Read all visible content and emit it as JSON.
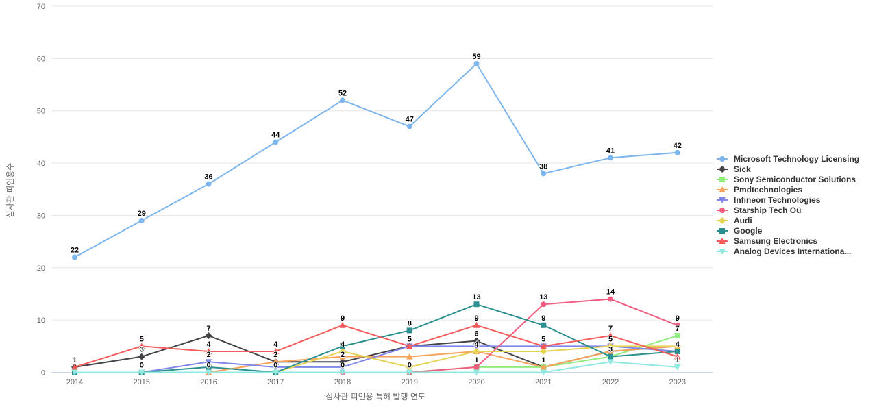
{
  "chart_data": {
    "type": "line",
    "x": [
      "2014",
      "2015",
      "2016",
      "2017",
      "2018",
      "2019",
      "2020",
      "2021",
      "2022",
      "2023"
    ],
    "xlabel": "심사관 피인용 특허 발행 연도",
    "ylabel": "심사관 피인용수",
    "ylim": [
      0,
      70
    ],
    "yticks": [
      0,
      10,
      20,
      30,
      40,
      50,
      60,
      70
    ],
    "grid": true,
    "legend_position": "right",
    "colors": {
      "grid": "#e6e6e6",
      "axis_line": "#ccd6eb",
      "tick_text": "#666666",
      "axis_title_text": "#666666",
      "point_label_text": "#000000",
      "legend_text": "#333333"
    },
    "series": [
      {
        "name": "Microsoft Technology Licensing",
        "color": "#7cb5ec",
        "marker": "circle",
        "values": [
          22,
          29,
          36,
          44,
          52,
          47,
          59,
          38,
          41,
          42
        ]
      },
      {
        "name": "Sick",
        "color": "#434348",
        "marker": "diamond",
        "values": [
          1,
          3,
          7,
          2,
          2,
          5,
          6,
          1,
          4,
          5
        ]
      },
      {
        "name": "Sony Semiconductor Solutions",
        "color": "#90ed7d",
        "marker": "square",
        "values": [
          null,
          null,
          null,
          null,
          null,
          0,
          1,
          1,
          3,
          7
        ]
      },
      {
        "name": "Pmdtechnologies",
        "color": "#f7a35c",
        "marker": "triangle",
        "values": [
          null,
          null,
          0,
          2,
          3,
          3,
          4,
          1,
          4,
          5
        ]
      },
      {
        "name": "Infineon Technologies",
        "color": "#8085e9",
        "marker": "triangle-down",
        "values": [
          null,
          0,
          2,
          1,
          1,
          5,
          5,
          5,
          5,
          4
        ]
      },
      {
        "name": "Starship Tech Oü",
        "color": "#f15c80",
        "marker": "circle",
        "values": [
          null,
          null,
          null,
          null,
          0,
          0,
          1,
          13,
          14,
          9
        ]
      },
      {
        "name": "Audi",
        "color": "#e4d354",
        "marker": "diamond",
        "values": [
          null,
          null,
          null,
          0,
          4,
          1,
          4,
          4,
          5,
          5
        ]
      },
      {
        "name": "Google",
        "color": "#2b908f",
        "marker": "square",
        "values": [
          0,
          0,
          1,
          0,
          5,
          8,
          13,
          9,
          3,
          4
        ]
      },
      {
        "name": "Samsung Electronics",
        "color": "#f45b5b",
        "marker": "triangle",
        "values": [
          1,
          5,
          4,
          4,
          9,
          5,
          9,
          5,
          7,
          3
        ]
      },
      {
        "name": "Analog Devices Internationa...",
        "color": "#91e8e1",
        "marker": "triangle-down",
        "values": [
          0,
          0,
          0,
          0,
          0,
          0,
          0,
          0,
          2,
          1
        ]
      }
    ],
    "visible_point_labels": [
      {
        "series_index": 0,
        "x_index": 0,
        "value": 22
      },
      {
        "series_index": 8,
        "x_index": 0,
        "value": 1
      },
      {
        "series_index": 0,
        "x_index": 1,
        "value": 29
      },
      {
        "series_index": 8,
        "x_index": 1,
        "value": 5
      },
      {
        "series_index": 1,
        "x_index": 1,
        "value": 3
      },
      {
        "series_index": 7,
        "x_index": 1,
        "value": 0
      },
      {
        "series_index": 0,
        "x_index": 2,
        "value": 36
      },
      {
        "series_index": 1,
        "x_index": 2,
        "value": 7
      },
      {
        "series_index": 8,
        "x_index": 2,
        "value": 4
      },
      {
        "series_index": 4,
        "x_index": 2,
        "value": 2
      },
      {
        "series_index": 9,
        "x_index": 2,
        "value": 0
      },
      {
        "series_index": 0,
        "x_index": 3,
        "value": 44
      },
      {
        "series_index": 8,
        "x_index": 3,
        "value": 4
      },
      {
        "series_index": 1,
        "x_index": 3,
        "value": 2
      },
      {
        "series_index": 7,
        "x_index": 3,
        "value": 0
      },
      {
        "series_index": 0,
        "x_index": 4,
        "value": 52
      },
      {
        "series_index": 8,
        "x_index": 4,
        "value": 9
      },
      {
        "series_index": 6,
        "x_index": 4,
        "value": 4
      },
      {
        "series_index": 1,
        "x_index": 4,
        "value": 2
      },
      {
        "series_index": 9,
        "x_index": 4,
        "value": 0
      },
      {
        "series_index": 0,
        "x_index": 5,
        "value": 47
      },
      {
        "series_index": 7,
        "x_index": 5,
        "value": 8
      },
      {
        "series_index": 8,
        "x_index": 5,
        "value": 5
      },
      {
        "series_index": 9,
        "x_index": 5,
        "value": 0
      },
      {
        "series_index": 0,
        "x_index": 6,
        "value": 59
      },
      {
        "series_index": 7,
        "x_index": 6,
        "value": 13
      },
      {
        "series_index": 8,
        "x_index": 6,
        "value": 9
      },
      {
        "series_index": 1,
        "x_index": 6,
        "value": 6
      },
      {
        "series_index": 6,
        "x_index": 6,
        "value": 4
      },
      {
        "series_index": 5,
        "x_index": 6,
        "value": 1
      },
      {
        "series_index": 0,
        "x_index": 7,
        "value": 38
      },
      {
        "series_index": 5,
        "x_index": 7,
        "value": 13
      },
      {
        "series_index": 7,
        "x_index": 7,
        "value": 9
      },
      {
        "series_index": 8,
        "x_index": 7,
        "value": 5
      },
      {
        "series_index": 1,
        "x_index": 7,
        "value": 1
      },
      {
        "series_index": 0,
        "x_index": 8,
        "value": 41
      },
      {
        "series_index": 5,
        "x_index": 8,
        "value": 14
      },
      {
        "series_index": 8,
        "x_index": 8,
        "value": 7
      },
      {
        "series_index": 6,
        "x_index": 8,
        "value": 5
      },
      {
        "series_index": 7,
        "x_index": 8,
        "value": 3
      },
      {
        "series_index": 0,
        "x_index": 9,
        "value": 42
      },
      {
        "series_index": 5,
        "x_index": 9,
        "value": 9
      },
      {
        "series_index": 2,
        "x_index": 9,
        "value": 7
      },
      {
        "series_index": 7,
        "x_index": 9,
        "value": 4
      },
      {
        "series_index": 9,
        "x_index": 9,
        "value": 1
      }
    ]
  }
}
